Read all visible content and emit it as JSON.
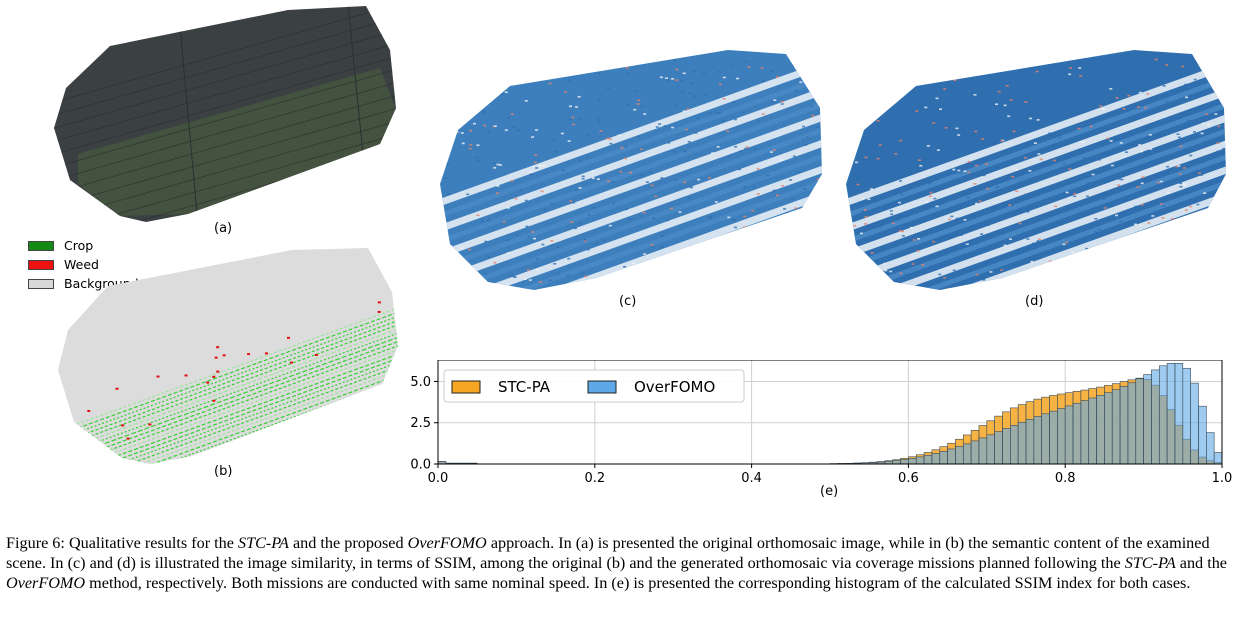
{
  "panels": {
    "a": {
      "label": "(a)"
    },
    "b": {
      "label": "(b)"
    },
    "c": {
      "label": "(c)"
    },
    "d": {
      "label": "(d)"
    },
    "e": {
      "label": "(e)"
    }
  },
  "segmentation_legend": {
    "items": [
      {
        "label": "Crop",
        "color": "#138a13"
      },
      {
        "label": "Weed",
        "color": "#ee1111"
      },
      {
        "label": "Background",
        "color": "#d8d8d8"
      }
    ]
  },
  "caption": {
    "p1": "Figure 6: Qualitative results for the ",
    "m1": "STC-PA",
    "p2": " and the proposed ",
    "m2": "OverFOMO",
    "p3": " approach. In (a) is presented the original orthomosaic image, while in (b) the semantic content of the examined scene. In (c) and (d) is illustrated the image similarity, in terms of SSIM, among the original (b) and the generated orthomosaic via coverage missions planned following the ",
    "m3": "STC-PA",
    "p4": " and the ",
    "m4": "OverFOMO",
    "p5": " method, respectively. Both missions are conducted with same nominal speed. In (e) is presented the corresponding histogram of the calculated SSIM index for both cases."
  },
  "chart_data": {
    "type": "bar",
    "xlim": [
      0.0,
      1.0
    ],
    "ylim": [
      0.0,
      6.3
    ],
    "x_ticks": [
      "0.0",
      "0.2",
      "0.4",
      "0.6",
      "0.8",
      "1.0"
    ],
    "y_ticks": [
      "0.0",
      "2.5",
      "5.0"
    ],
    "grid": true,
    "legend_position": "top-left",
    "bin_width": 0.01,
    "series": [
      {
        "name": "STC-PA",
        "color": "#f5a623",
        "x": [
          0.0,
          0.01,
          0.02,
          0.03,
          0.04,
          0.5,
          0.51,
          0.52,
          0.53,
          0.54,
          0.55,
          0.56,
          0.57,
          0.58,
          0.59,
          0.6,
          0.61,
          0.62,
          0.63,
          0.64,
          0.65,
          0.66,
          0.67,
          0.68,
          0.69,
          0.7,
          0.71,
          0.72,
          0.73,
          0.74,
          0.75,
          0.76,
          0.77,
          0.78,
          0.79,
          0.8,
          0.81,
          0.82,
          0.83,
          0.84,
          0.85,
          0.86,
          0.87,
          0.88,
          0.89,
          0.9,
          0.91,
          0.92,
          0.93,
          0.94,
          0.95,
          0.96,
          0.97,
          0.98,
          0.99
        ],
        "values": [
          0.15,
          0.05,
          0.05,
          0.05,
          0.05,
          0.02,
          0.03,
          0.04,
          0.06,
          0.08,
          0.11,
          0.15,
          0.2,
          0.26,
          0.34,
          0.44,
          0.56,
          0.7,
          0.86,
          1.05,
          1.26,
          1.5,
          1.76,
          2.04,
          2.33,
          2.62,
          2.9,
          3.16,
          3.4,
          3.6,
          3.78,
          3.93,
          4.05,
          4.15,
          4.24,
          4.32,
          4.4,
          4.48,
          4.57,
          4.66,
          4.76,
          4.87,
          4.99,
          5.1,
          5.2,
          5.12,
          4.78,
          4.15,
          3.3,
          2.35,
          1.5,
          0.85,
          0.42,
          0.2,
          0.08
        ]
      },
      {
        "name": "OverFOMO",
        "color": "#5fa8e8",
        "x": [
          0.0,
          0.01,
          0.02,
          0.03,
          0.04,
          0.5,
          0.51,
          0.52,
          0.53,
          0.54,
          0.55,
          0.56,
          0.57,
          0.58,
          0.59,
          0.6,
          0.61,
          0.62,
          0.63,
          0.64,
          0.65,
          0.66,
          0.67,
          0.68,
          0.69,
          0.7,
          0.71,
          0.72,
          0.73,
          0.74,
          0.75,
          0.76,
          0.77,
          0.78,
          0.79,
          0.8,
          0.81,
          0.82,
          0.83,
          0.84,
          0.85,
          0.86,
          0.87,
          0.88,
          0.89,
          0.9,
          0.91,
          0.92,
          0.93,
          0.94,
          0.95,
          0.96,
          0.97,
          0.98,
          0.99
        ],
        "values": [
          0.15,
          0.05,
          0.05,
          0.05,
          0.05,
          0.02,
          0.03,
          0.04,
          0.05,
          0.07,
          0.09,
          0.12,
          0.16,
          0.21,
          0.27,
          0.34,
          0.43,
          0.53,
          0.64,
          0.77,
          0.91,
          1.06,
          1.22,
          1.4,
          1.58,
          1.77,
          1.96,
          2.15,
          2.34,
          2.53,
          2.71,
          2.88,
          3.04,
          3.2,
          3.36,
          3.52,
          3.68,
          3.84,
          4.0,
          4.16,
          4.32,
          4.5,
          4.7,
          4.92,
          5.16,
          5.42,
          5.7,
          5.95,
          6.1,
          6.1,
          5.8,
          4.9,
          3.5,
          1.9,
          0.7
        ]
      }
    ]
  }
}
